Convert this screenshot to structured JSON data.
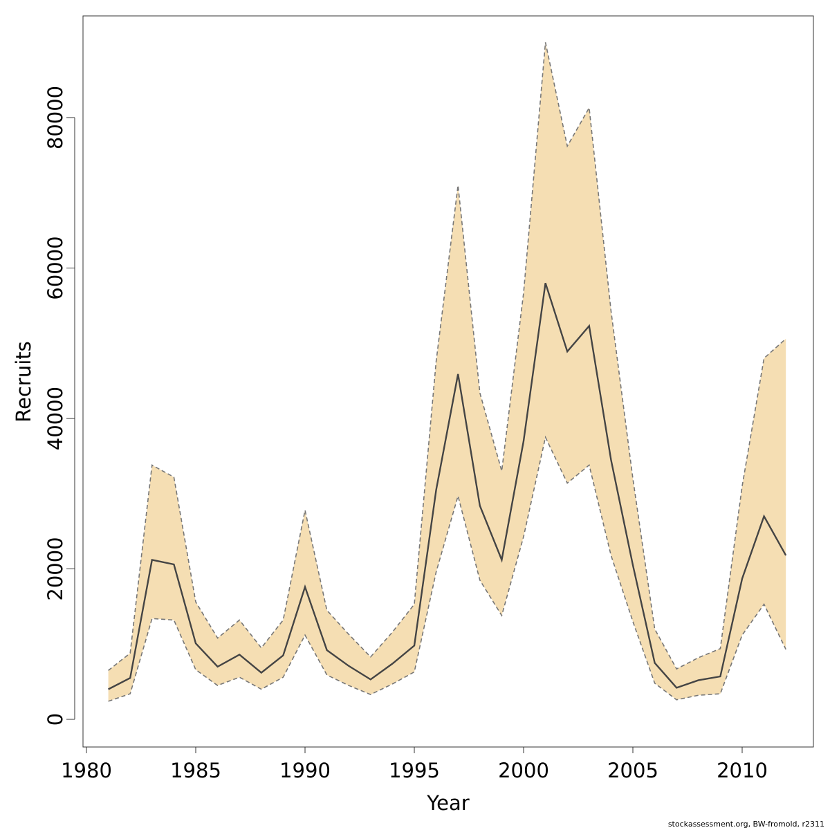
{
  "chart_data": {
    "type": "area",
    "xlabel": "Year",
    "ylabel": "Recruits",
    "xlim": [
      1980,
      2012
    ],
    "ylim": [
      0,
      90000
    ],
    "x_ticks": [
      1980,
      1985,
      1990,
      1995,
      2000,
      2005,
      2010
    ],
    "y_ticks": [
      0,
      20000,
      40000,
      60000,
      80000
    ],
    "x": [
      1981,
      1982,
      1983,
      1984,
      1985,
      1986,
      1987,
      1988,
      1989,
      1990,
      1991,
      1992,
      1993,
      1994,
      1995,
      1996,
      1997,
      1998,
      1999,
      2000,
      2001,
      2002,
      2003,
      2004,
      2005,
      2006,
      2007,
      2008,
      2009,
      2010,
      2011,
      2012
    ],
    "series": [
      {
        "role": "estimate",
        "values": [
          4000,
          5500,
          21200,
          20600,
          10100,
          7000,
          8600,
          6200,
          8500,
          17600,
          9200,
          7100,
          5300,
          7400,
          9800,
          30500,
          45900,
          28400,
          21200,
          37000,
          58000,
          48900,
          52300,
          34500,
          20500,
          7500,
          4200,
          5200,
          5700,
          18700,
          27000,
          21800
        ]
      },
      {
        "role": "upper",
        "values": [
          6500,
          8800,
          33800,
          32200,
          15600,
          10800,
          13200,
          9500,
          13200,
          27800,
          14500,
          11300,
          8300,
          11600,
          15300,
          47600,
          71000,
          43400,
          33000,
          56700,
          90000,
          76200,
          81300,
          54300,
          32000,
          12000,
          6700,
          8200,
          9400,
          31000,
          48000,
          50600
        ]
      },
      {
        "role": "lower",
        "values": [
          2400,
          3400,
          13400,
          13200,
          6600,
          4500,
          5600,
          4000,
          5600,
          11200,
          5900,
          4500,
          3300,
          4700,
          6300,
          19600,
          29700,
          18500,
          13800,
          24300,
          37500,
          31400,
          33800,
          21800,
          13000,
          4800,
          2600,
          3200,
          3400,
          11200,
          15300,
          9300
        ]
      }
    ],
    "colors": {
      "band": "#f5deb3",
      "line": "#444444",
      "ci_line": "#777777"
    },
    "grid": false,
    "legend": "none"
  },
  "footer": {
    "credit": "stockassessment.org, BW-fromold, r2311"
  }
}
